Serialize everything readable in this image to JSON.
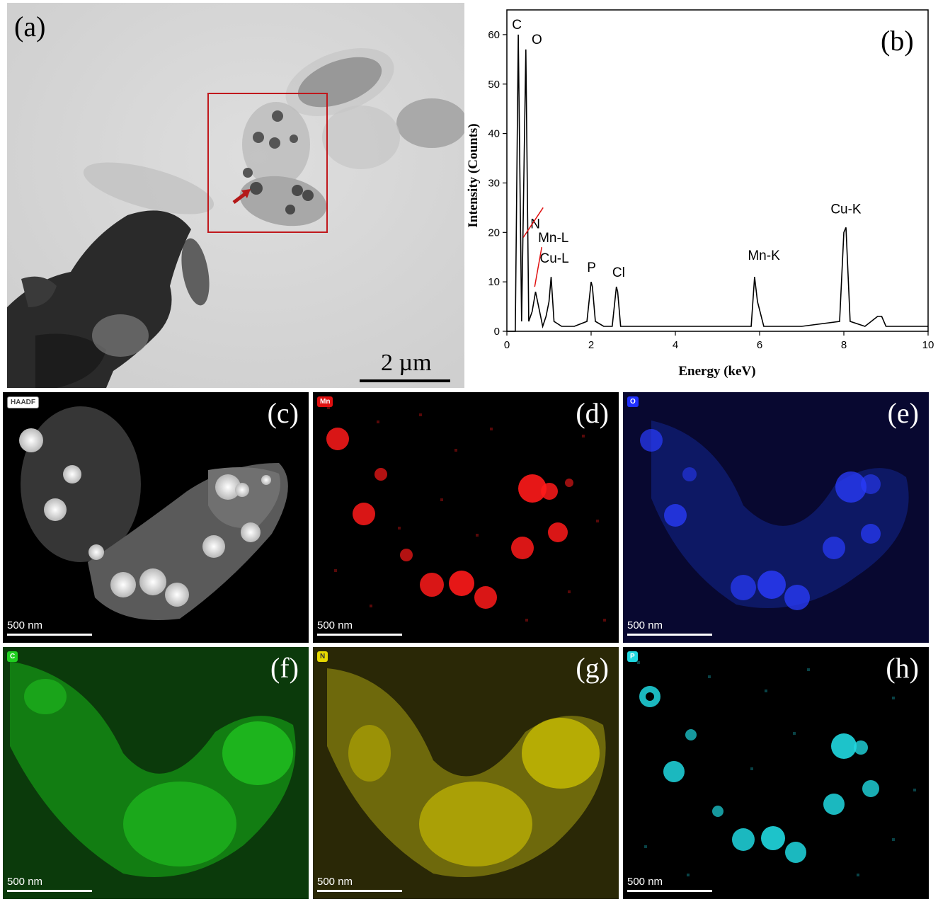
{
  "panels": {
    "a": {
      "label": "(a)",
      "scale_bar": "2 µm"
    },
    "b": {
      "label": "(b)"
    },
    "c": {
      "label": "(c)",
      "badge": "HAADF",
      "scale": "500 nm"
    },
    "d": {
      "label": "(d)",
      "badge": "Mn",
      "scale": "500 nm",
      "color": "#ff1a1a"
    },
    "e": {
      "label": "(e)",
      "badge": "O",
      "scale": "500 nm",
      "color": "#2a3cff"
    },
    "f": {
      "label": "(f)",
      "badge": "C",
      "scale": "500 nm",
      "color": "#20d020"
    },
    "g": {
      "label": "(g)",
      "badge": "N",
      "scale": "500 nm",
      "color": "#e6d800"
    },
    "h": {
      "label": "(h)",
      "badge": "P",
      "scale": "500 nm",
      "color": "#20d8e0"
    }
  },
  "chart_data": {
    "type": "line",
    "xlabel": "Energy (keV)",
    "ylabel": "Intensity (Counts)",
    "xlim": [
      0,
      10
    ],
    "ylim": [
      0,
      65
    ],
    "xticks": [
      0,
      2,
      4,
      6,
      8,
      10
    ],
    "yticks": [
      0,
      10,
      20,
      30,
      40,
      50,
      60
    ],
    "x": [
      0,
      0.2,
      0.27,
      0.35,
      0.45,
      0.52,
      0.6,
      0.68,
      0.85,
      0.93,
      1.0,
      1.05,
      1.12,
      1.3,
      1.6,
      1.9,
      2.0,
      2.03,
      2.1,
      2.3,
      2.5,
      2.6,
      2.63,
      2.7,
      3.0,
      4.0,
      5.0,
      5.8,
      5.88,
      5.95,
      6.1,
      7.0,
      7.9,
      8.0,
      8.05,
      8.15,
      8.5,
      8.8,
      8.9,
      9.0,
      9.5,
      10.0
    ],
    "y": [
      0,
      0,
      60,
      2,
      57,
      2,
      4,
      8,
      1,
      3,
      6,
      11,
      2,
      1,
      1,
      2,
      10,
      9,
      2,
      1,
      1,
      9,
      8,
      1,
      1,
      1,
      1,
      1,
      11,
      6,
      1,
      1,
      2,
      20,
      21,
      2,
      1,
      3,
      3,
      1,
      1,
      1
    ],
    "peaks": [
      {
        "label": "C",
        "energy": 0.27,
        "counts": 60
      },
      {
        "label": "O",
        "energy": 0.52,
        "counts": 57
      },
      {
        "label": "N",
        "energy": 0.39,
        "counts": 18
      },
      {
        "label": "Mn-L",
        "energy": 0.64,
        "counts": 8
      },
      {
        "label": "Cu-L",
        "energy": 1.05,
        "counts": 11
      },
      {
        "label": "P",
        "energy": 2.01,
        "counts": 10
      },
      {
        "label": "Cl",
        "energy": 2.62,
        "counts": 9
      },
      {
        "label": "Mn-K",
        "energy": 5.9,
        "counts": 11
      },
      {
        "label": "Cu-K",
        "energy": 8.05,
        "counts": 21
      }
    ]
  }
}
